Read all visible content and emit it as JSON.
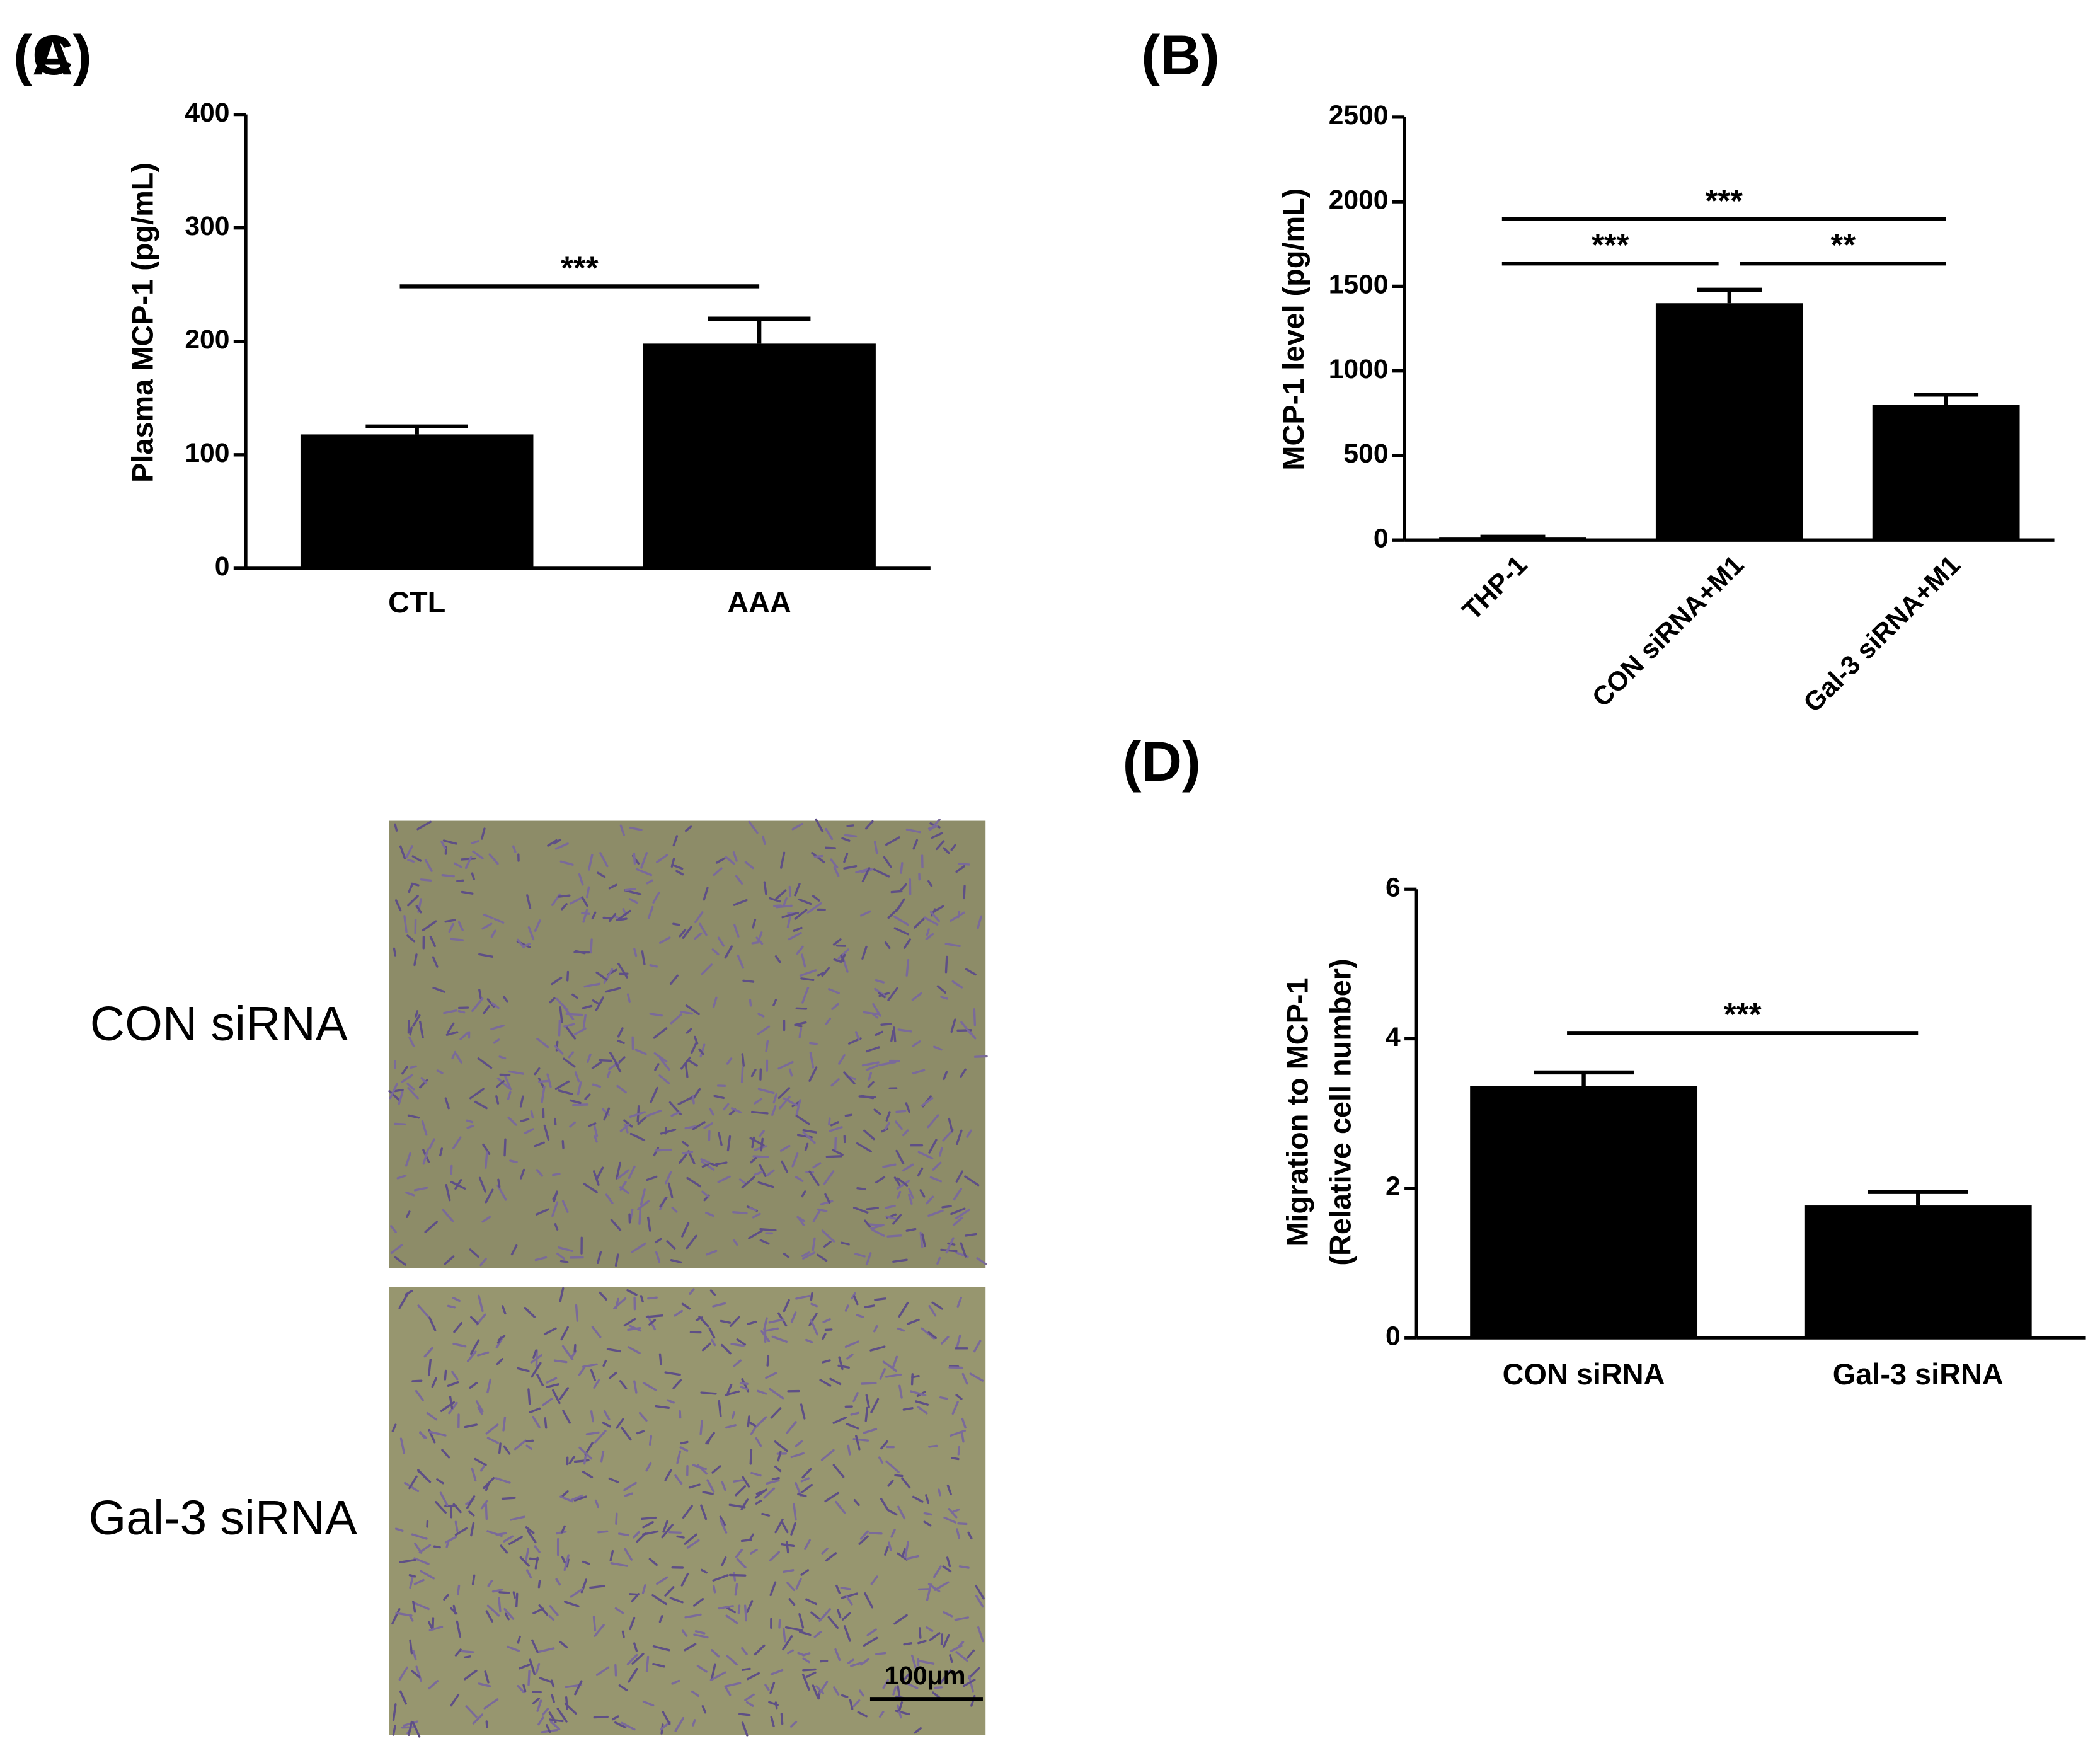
{
  "chart_data": [
    {
      "type": "bar",
      "panel": "(A)",
      "ylabel": [
        "Plasma MCP-1 (pg/mL)"
      ],
      "categories": [
        "CTL",
        "AAA"
      ],
      "values": [
        118,
        198
      ],
      "errors": [
        7,
        22
      ],
      "color": "#000000",
      "ylim": [
        0,
        400
      ],
      "yticks": [
        0,
        100,
        200,
        300,
        400
      ],
      "significance": [
        {
          "label": "***",
          "from": 0,
          "to": 1
        }
      ]
    },
    {
      "type": "bar",
      "panel": "(B)",
      "ylabel": [
        "MCP-1 level (pg/mL)"
      ],
      "categories": [
        "THP-1",
        "CON siRNA+M1",
        "Gal-3 siRNA+M1"
      ],
      "values": [
        15,
        1400,
        800
      ],
      "errors": [
        5,
        80,
        60
      ],
      "color": "#000000",
      "ylim": [
        0,
        2500
      ],
      "yticks": [
        0,
        500,
        1000,
        1500,
        2000,
        2500
      ],
      "significance": [
        {
          "label": "***",
          "from": 0,
          "to": 2
        },
        {
          "label": "***",
          "from": 0,
          "to": 1
        },
        {
          "label": "**",
          "from": 1,
          "to": 2
        }
      ]
    },
    {
      "type": "bar",
      "panel": "(D)",
      "ylabel": [
        "Migration to  MCP-1",
        "(Relative cell number)"
      ],
      "categories": [
        "CON siRNA",
        "Gal-3 siRNA"
      ],
      "values": [
        3.37,
        1.77
      ],
      "errors": [
        0.18,
        0.18
      ],
      "color": "#000000",
      "ylim": [
        0,
        6
      ],
      "yticks": [
        0,
        2,
        4,
        6
      ],
      "significance": [
        {
          "label": "***",
          "from": 0,
          "to": 1
        }
      ]
    }
  ],
  "panel_c": {
    "panel": "(C)",
    "rows": [
      "CON siRNA",
      "Gal-3 siRNA"
    ],
    "scale_bar": "100μm"
  }
}
